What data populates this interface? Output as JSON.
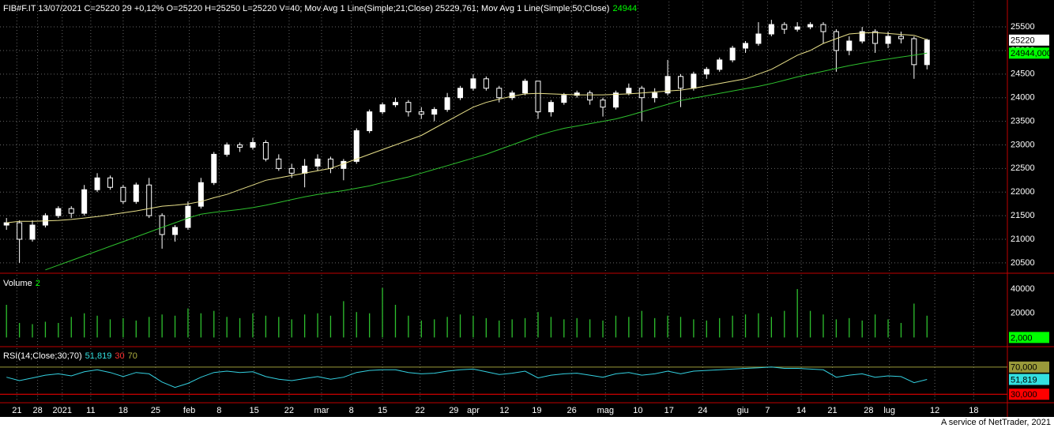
{
  "chart_data": [
    {
      "type": "candlestick",
      "title_parts": [
        {
          "text": "FIB#F.IT 13/07/2021 C=25220 29 +0,12% O=25220 H=25250 L=25220 V=40; Mov Avg 1 Line(Simple;21;Close) 25229,761; Mov Avg 1 Line(Simple;50;Close)",
          "color": "#ffffff"
        },
        {
          "text": "24944",
          "color": "#00ff00"
        }
      ],
      "open": [
        21300,
        21350,
        21000,
        21300,
        21500,
        21650,
        21550,
        22050,
        22300,
        22100,
        21800,
        22150,
        21500,
        21100,
        21250,
        21700,
        22200,
        22800,
        23000,
        22950,
        23050,
        22700,
        22500,
        22400,
        22550,
        22700,
        22500,
        22650,
        23300,
        23700,
        23850,
        23900,
        23700,
        23650,
        23750,
        24000,
        24200,
        24400,
        24200,
        24000,
        24100,
        24350,
        23700,
        23900,
        24050,
        24100,
        23950,
        23800,
        24100,
        24200,
        24000,
        24100,
        24450,
        24200,
        24500,
        24600,
        24800,
        25050,
        25150,
        25350,
        25550,
        25450,
        25500,
        25550,
        25400,
        25000,
        25200,
        25400,
        25150,
        25300,
        25250,
        24700
      ],
      "high": [
        21450,
        21400,
        21400,
        21550,
        21700,
        21700,
        22150,
        22400,
        22350,
        22150,
        22200,
        22300,
        21550,
        21300,
        21800,
        22300,
        22850,
        23050,
        23050,
        23150,
        23100,
        22800,
        22600,
        22700,
        22800,
        22750,
        22700,
        23350,
        23750,
        23900,
        24000,
        23950,
        23800,
        23800,
        24100,
        24250,
        24500,
        24450,
        24250,
        24150,
        24400,
        24350,
        23950,
        24100,
        24150,
        24150,
        24000,
        24150,
        24300,
        24250,
        24200,
        24800,
        24500,
        24550,
        24650,
        24850,
        25100,
        25200,
        25600,
        25650,
        25600,
        25600,
        25600,
        25600,
        25450,
        25300,
        25500,
        25450,
        25400,
        25400,
        25300,
        25250
      ],
      "low": [
        21200,
        20500,
        20950,
        21250,
        21450,
        21450,
        21500,
        22000,
        22050,
        21750,
        21750,
        21450,
        20800,
        20950,
        21200,
        21650,
        22150,
        22750,
        22850,
        22900,
        22650,
        22450,
        22300,
        22100,
        22450,
        22400,
        22250,
        22600,
        23250,
        23650,
        23800,
        23600,
        23550,
        23500,
        23700,
        23950,
        24150,
        24150,
        23900,
        23950,
        24050,
        23550,
        23600,
        23850,
        24000,
        23850,
        23600,
        23750,
        24050,
        23500,
        23900,
        24050,
        23800,
        24150,
        24400,
        24550,
        24750,
        24950,
        25100,
        25300,
        25350,
        25400,
        25450,
        25150,
        24550,
        24900,
        25150,
        24950,
        25050,
        25150,
        24400,
        24600
      ],
      "close": [
        21350,
        21000,
        21300,
        21500,
        21650,
        21550,
        22050,
        22300,
        22100,
        21800,
        22150,
        21500,
        21100,
        21250,
        21700,
        22200,
        22800,
        23000,
        22950,
        23050,
        22700,
        22500,
        22400,
        22550,
        22700,
        22500,
        22650,
        23300,
        23700,
        23850,
        23900,
        23700,
        23650,
        23750,
        24000,
        24200,
        24400,
        24200,
        24000,
        24100,
        24350,
        23700,
        23900,
        24050,
        24100,
        23950,
        23800,
        24100,
        24200,
        24000,
        24100,
        24450,
        24200,
        24500,
        24600,
        24800,
        25050,
        25150,
        25350,
        25550,
        25450,
        25500,
        25550,
        25400,
        25000,
        25200,
        25400,
        25150,
        25300,
        25250,
        24700,
        25220
      ],
      "up_color": "#ffffff",
      "down_color": "#000000",
      "wick_color": "#ffffff",
      "series": [
        {
          "color": "#e8e08a",
          "values": [
            21350,
            21380,
            21380,
            21390,
            21400,
            21420,
            21450,
            21480,
            21520,
            21560,
            21600,
            21650,
            21700,
            21720,
            21750,
            21800,
            21880,
            21950,
            22050,
            22150,
            22250,
            22300,
            22350,
            22400,
            22450,
            22500,
            22600,
            22700,
            22800,
            22900,
            23000,
            23100,
            23200,
            23350,
            23500,
            23650,
            23800,
            23900,
            23970,
            24030,
            24080,
            24090,
            24080,
            24070,
            24060,
            24060,
            24060,
            24070,
            24080,
            24100,
            24120,
            24140,
            24160,
            24200,
            24250,
            24300,
            24350,
            24400,
            24500,
            24600,
            24750,
            24900,
            25000,
            25150,
            25250,
            25350,
            25370,
            25380,
            25360,
            25340,
            25320,
            25229.761
          ]
        },
        {
          "color": "#2ec02e",
          "values": [
            null,
            null,
            null,
            20350,
            20450,
            20550,
            20650,
            20750,
            20850,
            20950,
            21050,
            21150,
            21250,
            21350,
            21450,
            21530,
            21570,
            21600,
            21630,
            21670,
            21720,
            21780,
            21840,
            21900,
            21950,
            21990,
            22030,
            22080,
            22130,
            22200,
            22260,
            22320,
            22400,
            22480,
            22560,
            22640,
            22720,
            22800,
            22900,
            23000,
            23100,
            23200,
            23280,
            23350,
            23400,
            23450,
            23500,
            23550,
            23620,
            23700,
            23780,
            23860,
            23940,
            23990,
            24040,
            24090,
            24140,
            24190,
            24240,
            24300,
            24370,
            24440,
            24500,
            24560,
            24620,
            24680,
            24730,
            24780,
            24820,
            24860,
            24900,
            24944
          ]
        }
      ],
      "ylim": [
        20280,
        26070
      ],
      "yticks": [
        20500,
        21000,
        21500,
        22000,
        22500,
        23000,
        23500,
        24000,
        24500,
        25000,
        25500
      ],
      "markers": [
        {
          "value": 25220,
          "label": "25220",
          "color": "#ffffff"
        },
        {
          "value": 24944,
          "label": "24944,000",
          "color": "#00ff00"
        }
      ],
      "xlim": [
        -0.5,
        77.2
      ],
      "xticks": [
        {
          "value": 0.8,
          "label": "21"
        },
        {
          "value": 2.4,
          "label": "28"
        },
        {
          "value": 4.3,
          "label": "2021"
        },
        {
          "value": 6.5,
          "label": "11"
        },
        {
          "value": 9.0,
          "label": "18"
        },
        {
          "value": 11.5,
          "label": "25"
        },
        {
          "value": 14.1,
          "label": "feb"
        },
        {
          "value": 16.4,
          "label": "8"
        },
        {
          "value": 19.1,
          "label": "15"
        },
        {
          "value": 21.8,
          "label": "22"
        },
        {
          "value": 24.3,
          "label": "mar"
        },
        {
          "value": 26.6,
          "label": "8"
        },
        {
          "value": 29.0,
          "label": "15"
        },
        {
          "value": 31.9,
          "label": "22"
        },
        {
          "value": 34.5,
          "label": "29"
        },
        {
          "value": 36.0,
          "label": "apr"
        },
        {
          "value": 38.4,
          "label": "12"
        },
        {
          "value": 40.9,
          "label": "19"
        },
        {
          "value": 43.6,
          "label": "26"
        },
        {
          "value": 46.2,
          "label": "mag"
        },
        {
          "value": 48.7,
          "label": "10"
        },
        {
          "value": 51.1,
          "label": "17"
        },
        {
          "value": 53.7,
          "label": "24"
        },
        {
          "value": 56.8,
          "label": "giu"
        },
        {
          "value": 58.7,
          "label": "7"
        },
        {
          "value": 61.3,
          "label": "14"
        },
        {
          "value": 63.7,
          "label": "21"
        },
        {
          "value": 66.5,
          "label": "28"
        },
        {
          "value": 68.1,
          "label": "lug"
        },
        {
          "value": 71.6,
          "label": "12"
        },
        {
          "value": 74.6,
          "label": "18"
        }
      ],
      "grid": true
    },
    {
      "type": "bar",
      "title_parts": [
        {
          "text": "Volume",
          "color": "#ffffff"
        },
        {
          "text": "2",
          "color": "#00ff00"
        }
      ],
      "color": "#2ec02e",
      "values": [
        27000,
        12000,
        11000,
        13000,
        12000,
        17000,
        20000,
        18000,
        15000,
        16000,
        14000,
        17000,
        19000,
        18000,
        24000,
        20000,
        22000,
        17000,
        16000,
        20000,
        18000,
        17000,
        15000,
        19000,
        20000,
        18000,
        30000,
        21000,
        20000,
        41000,
        27000,
        18000,
        14000,
        15000,
        17000,
        19000,
        18000,
        16000,
        14000,
        15000,
        16000,
        21000,
        17000,
        15000,
        16000,
        15000,
        14000,
        18000,
        17000,
        22000,
        16000,
        18000,
        17000,
        15000,
        14000,
        16000,
        18000,
        19000,
        20000,
        17000,
        22000,
        40000,
        22000,
        19000,
        15000,
        16000,
        14000,
        19000,
        15000,
        12000,
        28000,
        18000
      ],
      "ylim": [
        -7600,
        53100
      ],
      "yticks": [
        20000,
        40000
      ],
      "markers": [
        {
          "value": 2,
          "label": "2,000",
          "color": "#00ff00"
        }
      ]
    },
    {
      "type": "line",
      "title_parts": [
        {
          "text": "RSI(14;Close;30;70)",
          "color": "#ffffff"
        },
        {
          "text": "51,819",
          "color": "#33e0e0"
        },
        {
          "text": "30",
          "color": "#ff3030"
        },
        {
          "text": "70",
          "color": "#b0b040"
        }
      ],
      "color": "#33d0e0",
      "values": [
        55,
        50,
        54,
        58,
        60,
        57,
        63,
        66,
        62,
        56,
        62,
        60,
        48,
        40,
        46,
        55,
        62,
        64,
        62,
        63,
        56,
        52,
        50,
        53,
        56,
        52,
        55,
        62,
        65,
        66,
        66,
        62,
        60,
        61,
        64,
        66,
        67,
        63,
        59,
        61,
        64,
        54,
        58,
        60,
        61,
        58,
        55,
        60,
        62,
        58,
        60,
        64,
        60,
        64,
        65,
        66,
        67,
        68,
        69,
        70,
        68,
        68,
        67,
        66,
        55,
        58,
        60,
        55,
        57,
        56,
        47,
        51.819
      ],
      "ylim": [
        17.5,
        100
      ],
      "levels": [
        {
          "value": 70,
          "label": "70,000",
          "color": "#9a9a3a"
        },
        {
          "value": 30,
          "label": "30,000",
          "color": "#ff0000"
        }
      ],
      "markers": [
        {
          "value": 51.819,
          "label": "51,819",
          "color": "#33e0e0"
        }
      ]
    }
  ],
  "footer": "A service of NetTrader, 2021"
}
